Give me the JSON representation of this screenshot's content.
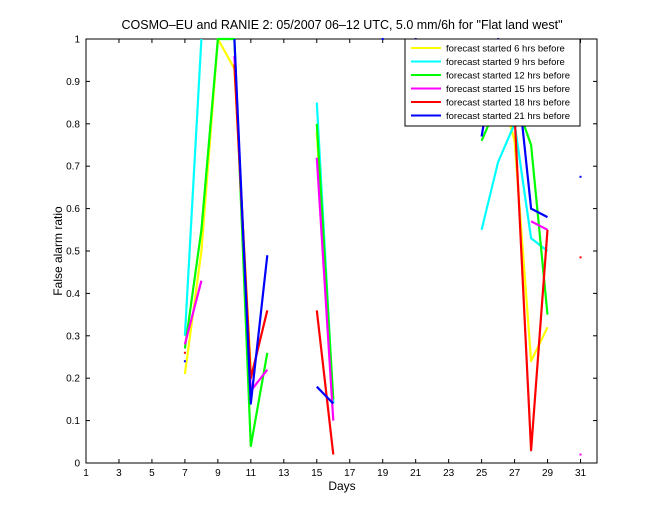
{
  "chart_data": {
    "type": "line",
    "title": "COSMO–EU and RANIE 2: 05/2007 06–12 UTC, 5.0 mm/6h for \"Flat land west\"",
    "xlabel": "Days",
    "ylabel": "False alarm ratio",
    "xlim": [
      1,
      32
    ],
    "ylim": [
      0,
      1
    ],
    "xticks": [
      1,
      3,
      5,
      7,
      9,
      11,
      13,
      15,
      17,
      19,
      21,
      23,
      25,
      27,
      29,
      31
    ],
    "yticks": [
      0,
      0.1,
      0.2,
      0.3,
      0.4,
      0.5,
      0.6,
      0.7,
      0.8,
      0.9,
      1
    ],
    "legend_position": "top-right",
    "grid": false,
    "series": [
      {
        "name": "forecast started 6 hrs before",
        "color": "#ffff00",
        "points": [
          [
            7,
            0.21
          ],
          [
            8,
            0.5
          ],
          [
            9,
            1.0
          ],
          [
            10,
            0.93
          ],
          [
            11,
            0.22
          ],
          [
            null,
            null
          ],
          [
            15,
            0.78
          ],
          [
            16,
            0.14
          ],
          [
            null,
            null
          ],
          [
            25,
            0.95
          ],
          [
            26,
            0.9
          ],
          [
            27,
            0.76
          ],
          [
            28,
            0.24
          ],
          [
            29,
            0.32
          ]
        ]
      },
      {
        "name": "forecast started 9 hrs before",
        "color": "#00ffff",
        "points": [
          [
            7,
            0.3
          ],
          [
            8,
            1.0
          ],
          [
            null,
            null
          ],
          [
            15,
            0.85
          ],
          [
            16,
            0.14
          ],
          [
            null,
            null
          ],
          [
            25,
            0.55
          ],
          [
            26,
            0.71
          ],
          [
            27,
            0.8
          ],
          [
            28,
            0.53
          ],
          [
            29,
            0.5
          ]
        ]
      },
      {
        "name": "forecast started 12 hrs before",
        "color": "#00ff00",
        "points": [
          [
            7,
            0.27
          ],
          [
            8,
            0.55
          ],
          [
            9,
            1.0
          ],
          [
            10,
            1.0
          ],
          [
            11,
            0.04
          ],
          [
            12,
            0.26
          ],
          [
            null,
            null
          ],
          [
            15,
            0.8
          ],
          [
            16,
            0.15
          ],
          [
            null,
            null
          ],
          [
            25,
            0.76
          ],
          [
            26,
            0.85
          ],
          [
            27,
            0.86
          ],
          [
            28,
            0.75
          ],
          [
            29,
            0.35
          ]
        ]
      },
      {
        "name": "forecast started 15 hrs before",
        "color": "#ff00ff",
        "points": [
          [
            7,
            0.28
          ],
          [
            8,
            0.43
          ],
          [
            null,
            null
          ],
          [
            10,
            0.96
          ],
          [
            11,
            0.17
          ],
          [
            12,
            0.22
          ],
          [
            null,
            null
          ],
          [
            15,
            0.72
          ],
          [
            16,
            0.1
          ],
          [
            null,
            null
          ],
          [
            28,
            0.57
          ],
          [
            29,
            0.55
          ]
        ]
      },
      {
        "name": "forecast started 18 hrs before",
        "color": "#ff0000",
        "points": [
          [
            10,
            0.94
          ],
          [
            11,
            0.2
          ],
          [
            12,
            0.36
          ],
          [
            null,
            null
          ],
          [
            15,
            0.36
          ],
          [
            16,
            0.02
          ],
          [
            null,
            null
          ],
          [
            25,
            1.0
          ],
          [
            26,
            0.93
          ],
          [
            27,
            0.82
          ],
          [
            28,
            0.03
          ],
          [
            29,
            0.55
          ]
        ]
      },
      {
        "name": "forecast started 21 hrs before",
        "color": "#0000ff",
        "points": [
          [
            10,
            1.0
          ],
          [
            11,
            0.14
          ],
          [
            12,
            0.49
          ],
          [
            null,
            null
          ],
          [
            15,
            0.18
          ],
          [
            16,
            0.14
          ],
          [
            null,
            null
          ],
          [
            25,
            0.77
          ],
          [
            26,
            1.0
          ],
          [
            27,
            0.97
          ],
          [
            28,
            0.6
          ],
          [
            29,
            0.58
          ]
        ]
      }
    ],
    "isolated_points": [
      {
        "x": 7,
        "y": 0.24,
        "color": "#0000ff"
      },
      {
        "x": 7,
        "y": 0.26,
        "color": "#ff0000"
      },
      {
        "x": 19,
        "y": 1.0,
        "color": "#0000ff"
      },
      {
        "x": 21,
        "y": 1.0,
        "color": "#0000ff"
      },
      {
        "x": 31,
        "y": 0.675,
        "color": "#0000ff"
      },
      {
        "x": 31,
        "y": 0.485,
        "color": "#ff0000"
      },
      {
        "x": 31,
        "y": 0.02,
        "color": "#ff00ff"
      }
    ]
  }
}
